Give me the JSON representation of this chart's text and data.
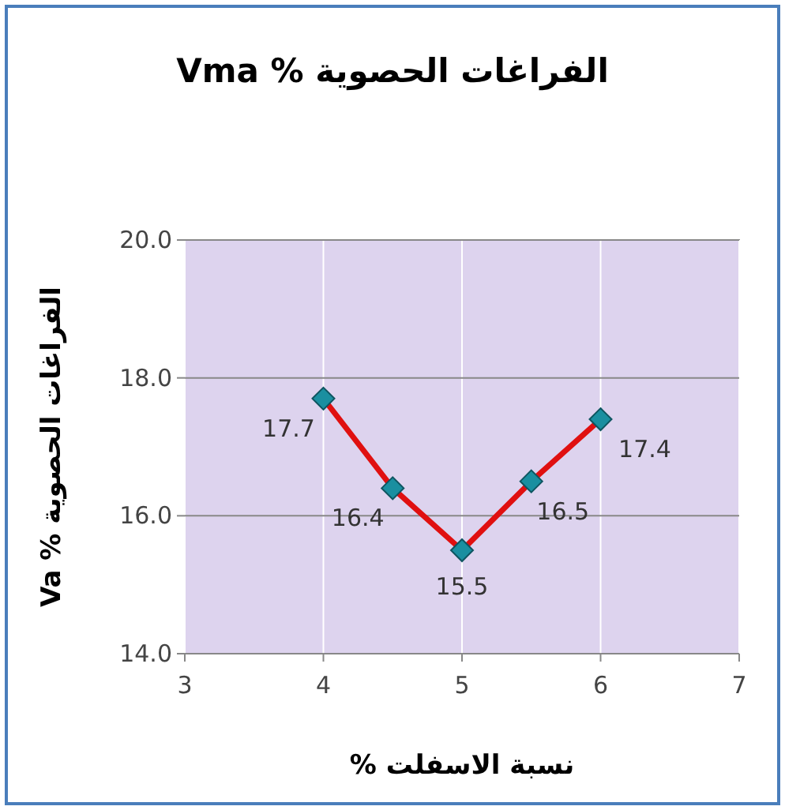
{
  "chart_data": {
    "type": "line",
    "title": "الفراغات الحصوية % Vma",
    "xlabel": "نسبة الاسفلت %",
    "ylabel": "الفراغات الحصوية % Va",
    "x": [
      4,
      4.5,
      5,
      5.5,
      6
    ],
    "series": [
      {
        "color": "#e01010",
        "values": [
          17.7,
          16.4,
          15.5,
          16.5,
          17.4
        ]
      }
    ],
    "xlim": [
      3,
      7
    ],
    "xticks": [
      3,
      4,
      5,
      6,
      7
    ],
    "ylim": [
      14,
      20
    ],
    "yticks": [
      {
        "value": 14,
        "label": "14.0"
      },
      {
        "value": 16,
        "label": "16.0"
      },
      {
        "value": 18,
        "label": "18.0"
      },
      {
        "value": 20,
        "label": "20.0"
      }
    ],
    "grid": true,
    "marker": "diamond",
    "data_labels": true
  }
}
